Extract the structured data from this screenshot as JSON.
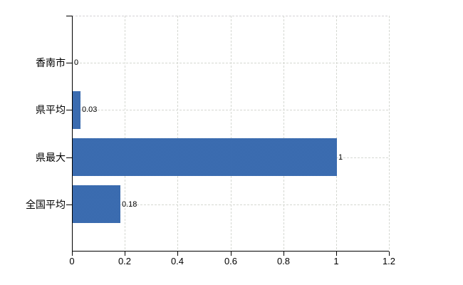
{
  "chart_data": {
    "type": "bar",
    "orientation": "horizontal",
    "title": "",
    "categories": [
      "香南市",
      "県平均",
      "県最大",
      "全国平均"
    ],
    "values": [
      0,
      0.03,
      1,
      0.18
    ],
    "value_labels": [
      "0",
      "0.03",
      "1",
      "0.18"
    ],
    "xlim": [
      0,
      1.2
    ],
    "x_tick_values": [
      0,
      0.2,
      0.4,
      0.6,
      0.8,
      1,
      1.2
    ],
    "x_tick_labels": [
      "0",
      "0.2",
      "0.4",
      "0.6",
      "0.8",
      "1",
      "1.2"
    ],
    "xlabel": "",
    "ylabel": "",
    "grid": true,
    "legend": false,
    "bar_color": "#3b6bb0",
    "grid_color": "#d5d8d2",
    "axis_color": "#000000",
    "label_color": "#000000",
    "background_color": "#ffffff"
  }
}
